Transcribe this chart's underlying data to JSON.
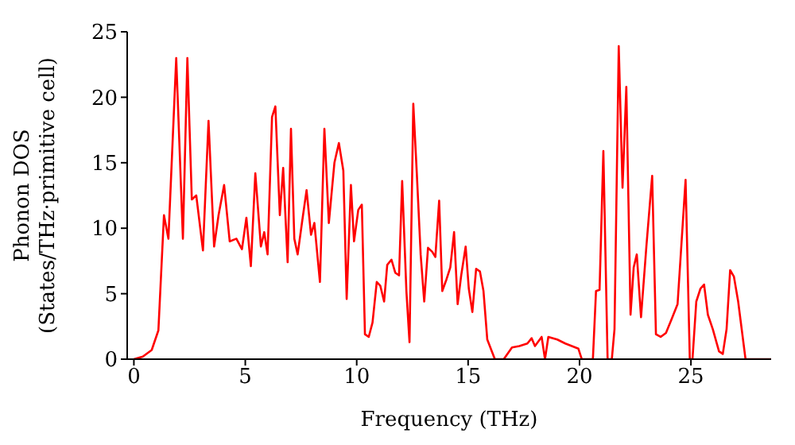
{
  "chart_data": {
    "type": "line",
    "xlabel": "Frequency (THz)",
    "ylabel": "Phonon DOS\n(States/THz·primitive cell)",
    "xlim": [
      -0.3,
      28.6
    ],
    "xticks": [
      0,
      5,
      10,
      15,
      20,
      25
    ],
    "ylim": [
      0,
      25
    ],
    "yticks": [
      0,
      5,
      10,
      15,
      20,
      25
    ],
    "grid": false,
    "legend": false,
    "marker": "none",
    "line_style": "solid",
    "series": [
      {
        "color": "#ff0000",
        "x": [
          0,
          0.4,
          0.8,
          1.1,
          1.35,
          1.55,
          1.9,
          2.2,
          2.4,
          2.6,
          2.8,
          3.1,
          3.35,
          3.6,
          3.8,
          4.05,
          4.3,
          4.6,
          4.85,
          5.05,
          5.25,
          5.45,
          5.7,
          5.85,
          6.0,
          6.2,
          6.35,
          6.55,
          6.7,
          6.9,
          7.05,
          7.2,
          7.35,
          7.55,
          7.75,
          7.95,
          8.1,
          8.35,
          8.55,
          8.75,
          9.0,
          9.2,
          9.4,
          9.55,
          9.74,
          9.88,
          10.07,
          10.23,
          10.37,
          10.54,
          10.71,
          10.9,
          11.06,
          11.23,
          11.37,
          11.56,
          11.73,
          11.9,
          12.04,
          12.23,
          12.37,
          12.54,
          12.7,
          12.87,
          13.03,
          13.2,
          13.39,
          13.53,
          13.7,
          13.84,
          14.03,
          14.2,
          14.37,
          14.53,
          14.69,
          14.89,
          15.03,
          15.19,
          15.36,
          15.53,
          15.69,
          15.86,
          16.2,
          16.6,
          16.97,
          17.3,
          17.66,
          17.85,
          18.0,
          18.3,
          18.45,
          18.6,
          19.0,
          19.36,
          19.95,
          20.1,
          20.6,
          20.74,
          20.9,
          21.07,
          21.26,
          21.45,
          21.57,
          21.76,
          21.93,
          22.1,
          22.29,
          22.43,
          22.57,
          22.76,
          23.0,
          23.26,
          23.43,
          23.64,
          23.88,
          24.12,
          24.4,
          24.76,
          24.95,
          25.07,
          25.24,
          25.43,
          25.59,
          25.76,
          25.98,
          26.26,
          26.43,
          26.6,
          26.76,
          26.93,
          27.12,
          27.45,
          28.6
        ],
        "values": [
          0,
          0.2,
          0.7,
          2.2,
          11,
          9.2,
          23,
          9.2,
          23,
          12.2,
          12.5,
          8.3,
          18.2,
          8.6,
          11,
          13.3,
          9,
          9.2,
          8.4,
          10.8,
          7.1,
          14.2,
          8.6,
          9.7,
          8,
          18.5,
          19.3,
          11,
          14.6,
          7.4,
          17.6,
          9.2,
          8,
          10.5,
          12.9,
          9.5,
          10.4,
          5.9,
          17.6,
          10.4,
          15,
          16.5,
          14.4,
          4.6,
          13.3,
          9.0,
          11.4,
          11.8,
          1.9,
          1.7,
          2.8,
          5.9,
          5.6,
          4.4,
          7.2,
          7.6,
          6.6,
          6.4,
          13.6,
          5.2,
          1.3,
          19.5,
          14.1,
          8.0,
          4.4,
          8.5,
          8.2,
          7.8,
          12.1,
          5.2,
          6.1,
          7.0,
          9.7,
          4.2,
          6.4,
          8.6,
          5.4,
          3.6,
          6.9,
          6.7,
          5.2,
          1.5,
          0,
          0,
          0.9,
          1.0,
          1.2,
          1.6,
          1.0,
          1.7,
          0,
          1.7,
          1.5,
          1.2,
          0.8,
          0,
          0,
          5.2,
          5.3,
          15.9,
          0,
          0,
          2.3,
          23.9,
          13.1,
          20.8,
          3.4,
          7.0,
          8.0,
          3.2,
          8.6,
          14.0,
          1.9,
          1.7,
          2.0,
          3.0,
          4.2,
          13.7,
          0,
          0,
          4.4,
          5.4,
          5.7,
          3.4,
          2.3,
          0.6,
          0.4,
          2.3,
          6.8,
          6.3,
          4.4,
          0,
          0
        ]
      }
    ]
  }
}
